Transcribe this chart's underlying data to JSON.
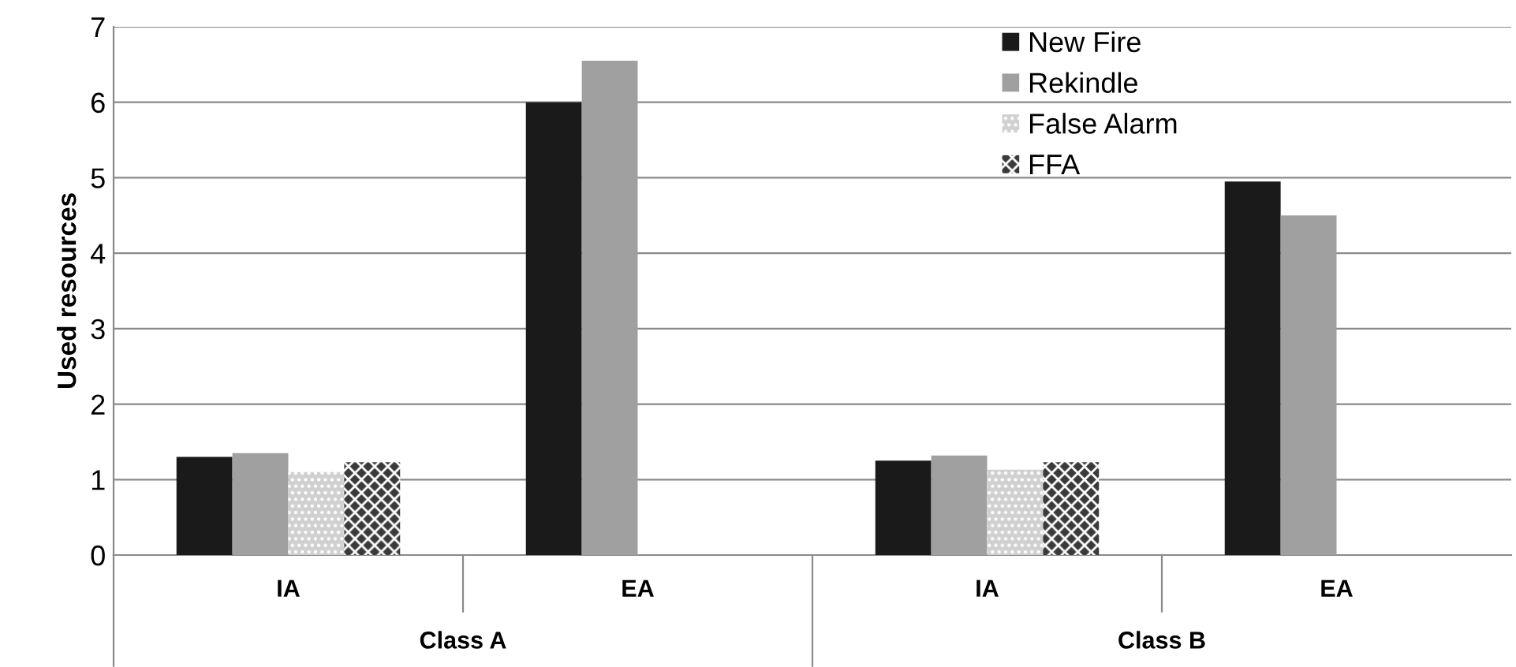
{
  "chart_data": {
    "type": "bar",
    "ylabel": "Used resources",
    "categories": [
      "IA",
      "EA",
      "IA",
      "EA"
    ],
    "series": [
      {
        "name": "New Fire",
        "color": "#1a1a1a",
        "values": [
          1.3,
          6.0,
          1.25,
          4.95
        ]
      },
      {
        "name": "Rekindle",
        "color": "#a0a0a0",
        "values": [
          1.35,
          6.55,
          1.32,
          4.5
        ]
      },
      {
        "name": "False Alarm",
        "color": "#d0d0d0",
        "values": [
          1.1,
          null,
          1.13,
          null
        ]
      },
      {
        "name": "FFA",
        "color": "#3a3a3a",
        "values": [
          1.23,
          null,
          1.23,
          null
        ]
      }
    ],
    "annotations": [
      "Class A",
      "Class B"
    ],
    "ylim": [
      0,
      7
    ],
    "yticks": [
      0,
      1,
      2,
      3,
      4,
      5,
      6,
      7
    ],
    "grid": "y",
    "legend": "top right"
  }
}
